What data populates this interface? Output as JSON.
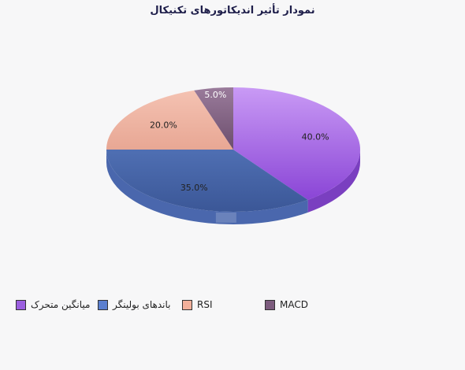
{
  "chart_data": {
    "type": "pie",
    "title": "نمودار تأثیر اندیکاتورهای تکنیکال",
    "categories": [
      "میانگین متحرک",
      "باندهای بولینگر",
      "RSI",
      "MACD"
    ],
    "values": [
      40.0,
      35.0,
      20.0,
      5.0
    ],
    "data_labels": [
      "40.0%",
      "35.0%",
      "20.0%",
      "5.0%"
    ],
    "colors": [
      "#9b5fe0",
      "#5b7fcf",
      "#f2b09b",
      "#7d5c7e"
    ],
    "legend_placement": "bottom",
    "three_d": true
  }
}
